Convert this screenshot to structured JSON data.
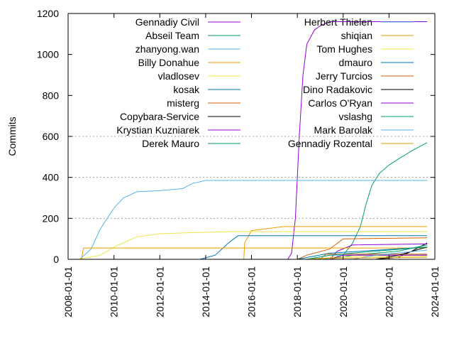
{
  "chart_data": {
    "type": "line",
    "title": "",
    "xlabel": "",
    "ylabel": "Commits",
    "xlim": [
      "2008-01-01",
      "2024-01-01"
    ],
    "ylim": [
      0,
      1200
    ],
    "grid": "horizontal dotted at 200, 400, 600",
    "legend_placement": "top, two columns inside plot",
    "x_ticks": [
      "2008-01-01",
      "2010-01-01",
      "2012-01-01",
      "2014-01-01",
      "2016-01-01",
      "2018-01-01",
      "2020-01-01",
      "2022-01-01",
      "2024-01-01"
    ],
    "y_ticks": [
      0,
      200,
      400,
      600,
      800,
      1000,
      1200
    ],
    "series": [
      {
        "name": "Gennadiy Civil",
        "color": "#9400d3",
        "points": [
          [
            "2017-08-01",
            0
          ],
          [
            "2017-10-01",
            30
          ],
          [
            "2017-12-01",
            200
          ],
          [
            "2018-02-01",
            600
          ],
          [
            "2018-04-01",
            900
          ],
          [
            "2018-06-01",
            1050
          ],
          [
            "2018-10-01",
            1120
          ],
          [
            "2019-01-01",
            1140
          ],
          [
            "2019-06-01",
            1160
          ],
          [
            "2023-09-01",
            1160
          ]
        ]
      },
      {
        "name": "Abseil Team",
        "color": "#009e73",
        "points": [
          [
            "2018-06-01",
            0
          ],
          [
            "2019-06-01",
            5
          ],
          [
            "2020-01-01",
            20
          ],
          [
            "2020-06-01",
            80
          ],
          [
            "2020-10-01",
            160
          ],
          [
            "2021-01-01",
            270
          ],
          [
            "2021-04-01",
            360
          ],
          [
            "2021-08-01",
            420
          ],
          [
            "2022-01-01",
            460
          ],
          [
            "2022-06-01",
            490
          ],
          [
            "2023-01-01",
            530
          ],
          [
            "2023-09-01",
            570
          ]
        ]
      },
      {
        "name": "zhanyong.wan",
        "color": "#56b4e9",
        "points": [
          [
            "2008-07-01",
            0
          ],
          [
            "2009-01-01",
            50
          ],
          [
            "2009-06-01",
            150
          ],
          [
            "2010-01-01",
            250
          ],
          [
            "2010-06-01",
            300
          ],
          [
            "2011-01-01",
            330
          ],
          [
            "2012-01-01",
            335
          ],
          [
            "2013-01-01",
            345
          ],
          [
            "2013-06-01",
            370
          ],
          [
            "2014-01-01",
            385
          ],
          [
            "2023-09-01",
            385
          ]
        ]
      },
      {
        "name": "Billy Donahue",
        "color": "#e69f00",
        "points": [
          [
            "2015-09-01",
            0
          ],
          [
            "2015-09-15",
            80
          ],
          [
            "2016-01-01",
            140
          ],
          [
            "2017-06-01",
            160
          ],
          [
            "2023-09-01",
            160
          ]
        ]
      },
      {
        "name": "vladlosev",
        "color": "#f0e442",
        "points": [
          [
            "2008-06-01",
            0
          ],
          [
            "2009-06-01",
            20
          ],
          [
            "2010-01-01",
            60
          ],
          [
            "2011-01-01",
            110
          ],
          [
            "2012-01-01",
            125
          ],
          [
            "2013-06-01",
            130
          ],
          [
            "2015-01-01",
            135
          ],
          [
            "2023-09-01",
            135
          ]
        ]
      },
      {
        "name": "kosak",
        "color": "#0072b2",
        "points": [
          [
            "2013-10-01",
            0
          ],
          [
            "2014-06-01",
            20
          ],
          [
            "2015-01-01",
            80
          ],
          [
            "2015-06-01",
            115
          ],
          [
            "2023-09-01",
            115
          ]
        ]
      },
      {
        "name": "misterg",
        "color": "#d55e00",
        "points": [
          [
            "2018-01-01",
            0
          ],
          [
            "2018-06-01",
            20
          ],
          [
            "2019-06-01",
            50
          ],
          [
            "2020-01-01",
            100
          ],
          [
            "2023-09-01",
            105
          ]
        ]
      },
      {
        "name": "Copybara-Service",
        "color": "#000000",
        "points": [
          [
            "2021-06-01",
            0
          ],
          [
            "2022-06-01",
            10
          ],
          [
            "2023-01-01",
            40
          ],
          [
            "2023-09-01",
            80
          ]
        ]
      },
      {
        "name": "Krystian Kuzniarek",
        "color": "#9400d3",
        "points": [
          [
            "2019-06-01",
            0
          ],
          [
            "2019-10-01",
            40
          ],
          [
            "2020-06-01",
            70
          ],
          [
            "2023-09-01",
            75
          ]
        ]
      },
      {
        "name": "Derek Mauro",
        "color": "#009e73",
        "points": [
          [
            "2019-06-01",
            0
          ],
          [
            "2020-06-01",
            20
          ],
          [
            "2021-06-01",
            30
          ],
          [
            "2022-06-01",
            40
          ],
          [
            "2023-09-01",
            70
          ]
        ]
      },
      {
        "name": "Herbert Thielen",
        "color": "#56b4e9",
        "points": [
          [
            "2018-06-01",
            0
          ],
          [
            "2019-06-01",
            20
          ],
          [
            "2023-09-01",
            22
          ]
        ]
      },
      {
        "name": "shiqian",
        "color": "#e69f00",
        "points": [
          [
            "2008-08-01",
            0
          ],
          [
            "2008-09-01",
            55
          ],
          [
            "2023-09-01",
            55
          ]
        ]
      },
      {
        "name": "Tom Hughes",
        "color": "#f0e442",
        "points": [
          [
            "2019-01-01",
            0
          ],
          [
            "2019-06-01",
            10
          ],
          [
            "2021-01-01",
            15
          ],
          [
            "2023-09-01",
            15
          ]
        ]
      },
      {
        "name": "dmauro",
        "color": "#0072b2",
        "points": [
          [
            "2018-01-01",
            0
          ],
          [
            "2019-06-01",
            30
          ],
          [
            "2023-09-01",
            60
          ]
        ]
      },
      {
        "name": "Jerry Turcios",
        "color": "#d55e00",
        "points": [
          [
            "2019-01-01",
            0
          ],
          [
            "2019-04-01",
            25
          ],
          [
            "2023-09-01",
            25
          ]
        ]
      },
      {
        "name": "Dino Radakovic",
        "color": "#000000",
        "points": [
          [
            "2021-06-01",
            0
          ],
          [
            "2022-06-01",
            20
          ],
          [
            "2023-09-01",
            60
          ]
        ]
      },
      {
        "name": "Carlos O'Ryan",
        "color": "#9400d3",
        "points": [
          [
            "2019-06-01",
            0
          ],
          [
            "2020-01-01",
            20
          ],
          [
            "2023-09-01",
            20
          ]
        ]
      },
      {
        "name": "vslashg",
        "color": "#009e73",
        "points": [
          [
            "2018-06-01",
            0
          ],
          [
            "2019-06-01",
            20
          ],
          [
            "2021-06-01",
            40
          ],
          [
            "2023-09-01",
            60
          ]
        ]
      },
      {
        "name": "Mark Barolak",
        "color": "#56b4e9",
        "points": [
          [
            "2020-06-01",
            0
          ],
          [
            "2021-06-01",
            20
          ],
          [
            "2023-09-01",
            45
          ]
        ]
      },
      {
        "name": "Gennadiy Rozental",
        "color": "#e69f00",
        "points": [
          [
            "2018-06-01",
            0
          ],
          [
            "2019-01-01",
            5
          ],
          [
            "2023-09-01",
            10
          ]
        ]
      }
    ]
  }
}
